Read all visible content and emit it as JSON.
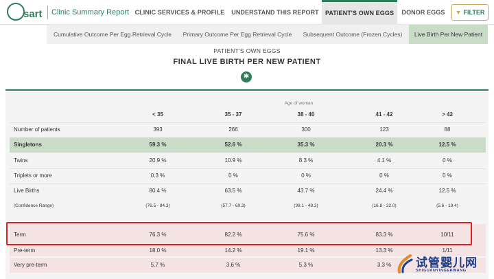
{
  "brand": {
    "logo_text": "sart",
    "title": "Clinic Summary Report"
  },
  "nav": {
    "tabs": [
      {
        "label": "CLINIC SERVICES & PROFILE",
        "active": false
      },
      {
        "label": "UNDERSTAND THIS REPORT",
        "active": false
      },
      {
        "label": "PATIENT'S OWN EGGS",
        "active": true
      },
      {
        "label": "DONOR EGGS",
        "active": false
      }
    ],
    "filter_label": "FILTER",
    "filter_icon": "funnel-icon"
  },
  "subnav": {
    "tabs": [
      {
        "label": "Cumulative Outcome Per Egg Retrieval Cycle",
        "active": false
      },
      {
        "label": "Primary Outcome Per Egg Retrieval Cycle",
        "active": false
      },
      {
        "label": "Subsequent Outcome (Frozen Cycles)",
        "active": false
      },
      {
        "label": "Live Birth Per New Patient",
        "active": true
      }
    ]
  },
  "page": {
    "kicker": "PATIENT'S OWN EGGS",
    "title": "FINAL LIVE BIRTH PER NEW PATIENT",
    "badge_icon": "asterisk-icon",
    "badge_glyph": "✱"
  },
  "table": {
    "age_caption": "Age of woman",
    "columns": [
      "< 35",
      "35 - 37",
      "38 - 40",
      "41 - 42",
      "> 42"
    ],
    "rows": [
      {
        "label": "Number of patients",
        "values": [
          "393",
          "266",
          "300",
          "123",
          "88"
        ]
      },
      {
        "label": "Singletons",
        "values": [
          "59.3 %",
          "52.6 %",
          "35.3 %",
          "20.3 %",
          "12.5 %"
        ]
      },
      {
        "label": "Twins",
        "values": [
          "20.9 %",
          "10.9 %",
          "8.3 %",
          "4.1 %",
          "0 %"
        ]
      },
      {
        "label": "Triplets or more",
        "values": [
          "0.3 %",
          "0 %",
          "0 %",
          "0 %",
          "0 %"
        ]
      },
      {
        "label": "Live Births",
        "values": [
          "80.4 %",
          "63.5 %",
          "43.7 %",
          "24.4 %",
          "12.5 %"
        ]
      },
      {
        "label": "(Confidence Range)",
        "values": [
          "(76.5 - 84.3)",
          "(57.7 - 69.3)",
          "(38.1 - 49.3)",
          "(16.8 - 32.0)",
          "(5.6 - 19.4)"
        ]
      },
      {
        "label": "Term",
        "values": [
          "76.3 %",
          "82.2 %",
          "75.6 %",
          "83.3 %",
          "10/11"
        ]
      },
      {
        "label": "Pre-term",
        "values": [
          "18.0 %",
          "14.2 %",
          "19.1 %",
          "13.3 %",
          "1/11"
        ]
      },
      {
        "label": "Very pre-term",
        "values": [
          "5.7 %",
          "3.6 %",
          "5.3 %",
          "3.3 %",
          "0/11"
        ]
      }
    ]
  },
  "watermark": {
    "text": "试管婴儿网",
    "sub": "SHIGUANYINGERWANG"
  },
  "colors": {
    "accent": "#2e7d5b",
    "singleton_bg": "#c9dcc8",
    "highlight": "#e02020",
    "gold": "#c8a55a"
  }
}
